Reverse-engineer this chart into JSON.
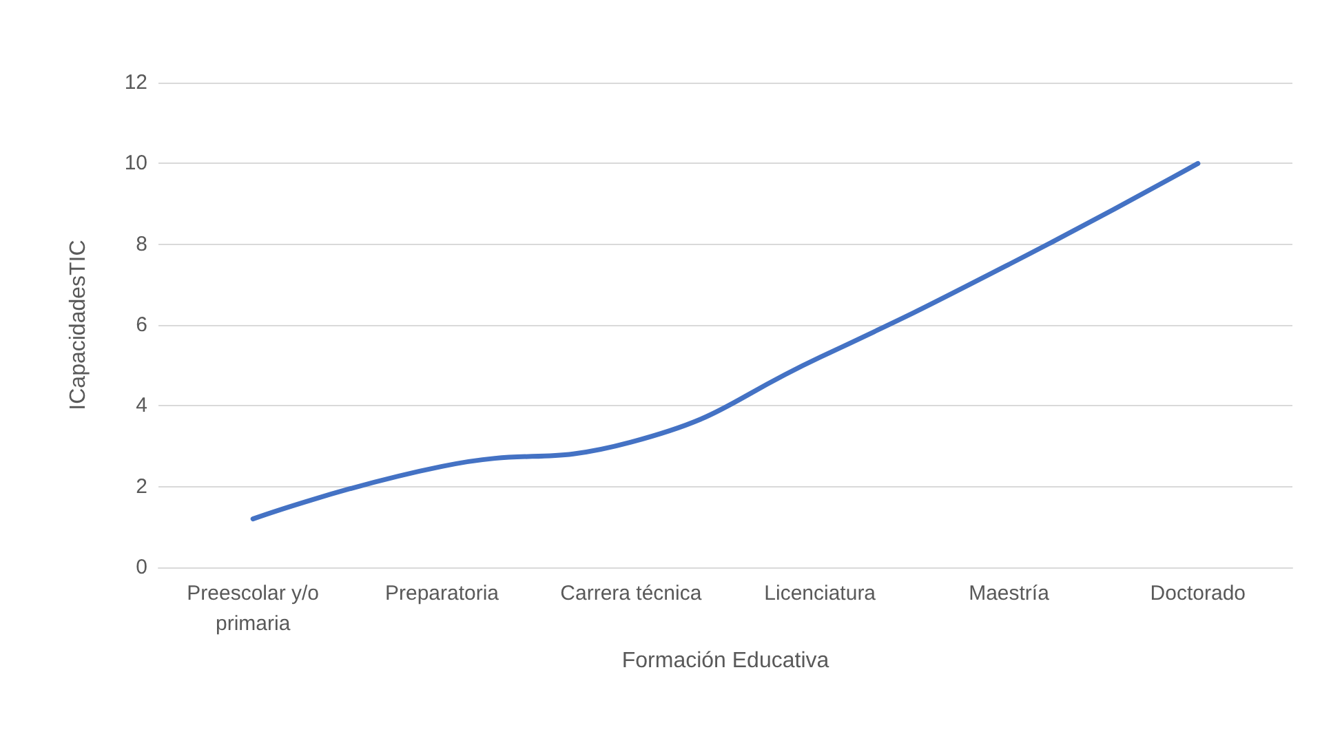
{
  "chart_data": {
    "type": "line",
    "xlabel": "Formación Educativa",
    "ylabel": "ICapacidadesTIC",
    "categories": [
      "Preescolar y/o\nprimaria",
      "Preparatoria",
      "Carrera técnica",
      "Licenciatura",
      "Maestría",
      "Doctorado"
    ],
    "series": [
      {
        "color": "#4472c4",
        "values": [
          1.2,
          2.5,
          3.1,
          5.2,
          7.5,
          10
        ]
      }
    ],
    "ylim": [
      0,
      12
    ],
    "yticks": [
      0,
      2,
      4,
      6,
      8,
      10,
      12
    ],
    "grid": "y",
    "marker": "none",
    "line_style": "solid"
  }
}
